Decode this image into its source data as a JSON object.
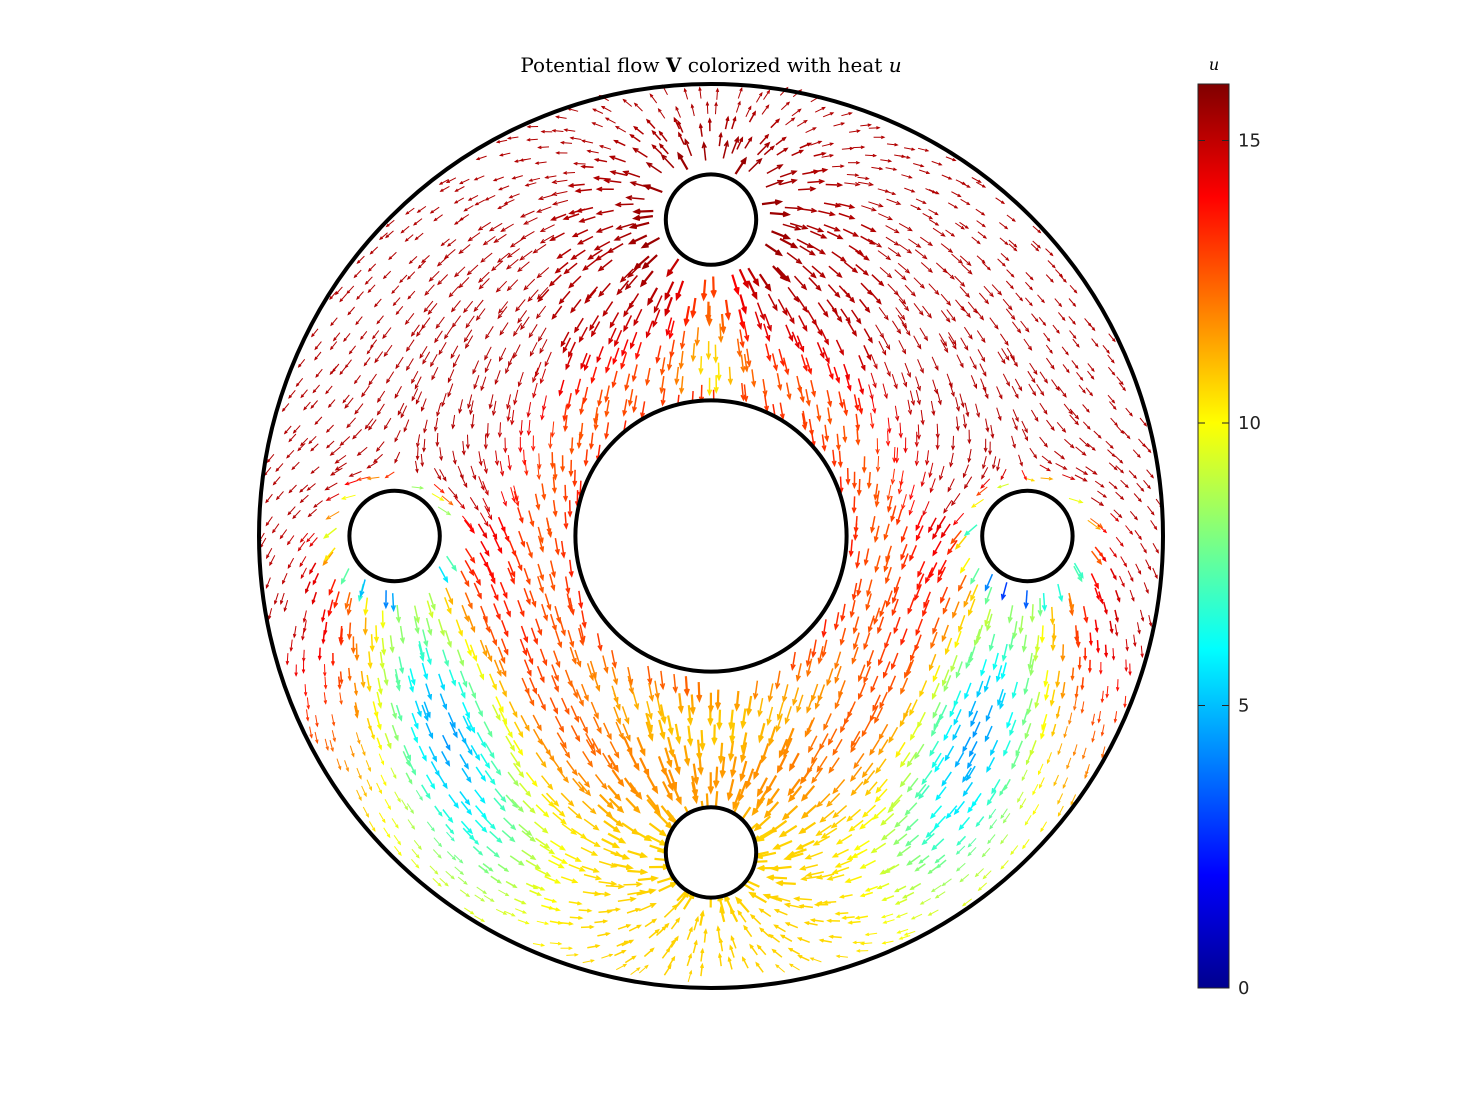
{
  "chart_data": {
    "type": "quiver",
    "title": {
      "prefix": "Potential flow ",
      "bold": "V",
      "middle": " colorized with heat ",
      "italic": "u"
    },
    "domain": {
      "outer_circle": {
        "cx": 0,
        "cy": 0,
        "r": 1.0
      },
      "holes": [
        {
          "name": "center",
          "cx": 0,
          "cy": 0,
          "r": 0.3
        },
        {
          "name": "top",
          "cx": 0,
          "cy": 0.7,
          "r": 0.1
        },
        {
          "name": "bottom",
          "cx": 0,
          "cy": -0.7,
          "r": 0.1
        },
        {
          "name": "left",
          "cx": -0.7,
          "cy": 0,
          "r": 0.1
        },
        {
          "name": "right",
          "cx": 0.7,
          "cy": 0,
          "r": 0.1
        }
      ]
    },
    "colorbar": {
      "label": "u",
      "colormap": "jet",
      "range": [
        0,
        16
      ],
      "ticks": [
        0,
        5,
        10,
        15
      ],
      "tick_labels": [
        "0",
        "5",
        "10",
        "15"
      ]
    }
  }
}
